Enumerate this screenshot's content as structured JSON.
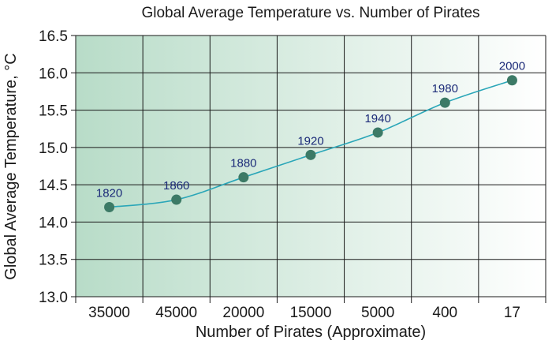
{
  "chart_data": {
    "type": "line",
    "title": "Global Average Temperature vs. Number of Pirates",
    "xlabel": "Number of Pirates (Approximate)",
    "ylabel": "Global Average Temperature, °C",
    "categories": [
      "35000",
      "45000",
      "20000",
      "15000",
      "5000",
      "400",
      "17"
    ],
    "point_labels": [
      "1820",
      "1860",
      "1880",
      "1920",
      "1940",
      "1980",
      "2000"
    ],
    "values": [
      14.2,
      14.3,
      14.6,
      14.9,
      15.2,
      15.6,
      15.9
    ],
    "ylim": [
      13.0,
      16.5
    ],
    "yticks": [
      "13.0",
      "13.5",
      "14.0",
      "14.5",
      "15.0",
      "15.5",
      "16.0",
      "16.5"
    ],
    "grid": true,
    "colors": {
      "background_left": "#b8dcc8",
      "background_right": "#ffffff",
      "line": "#2aa6b8",
      "marker": "#3c7a66",
      "point_label": "#1b2a78",
      "grid": "#1a1a1a"
    }
  }
}
